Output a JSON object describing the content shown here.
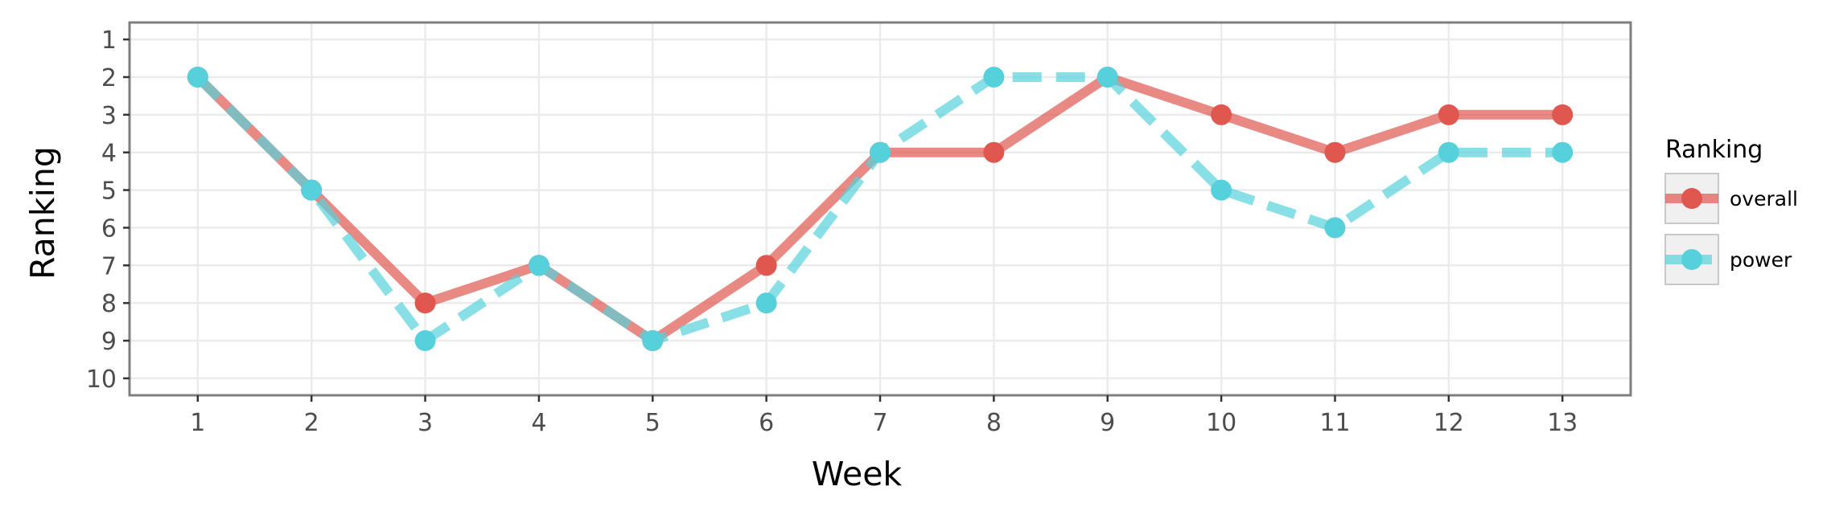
{
  "chart_data": {
    "type": "line",
    "title": "",
    "xlabel": "Week",
    "ylabel": "Ranking",
    "x": [
      1,
      2,
      3,
      4,
      5,
      6,
      7,
      8,
      9,
      10,
      11,
      12,
      13
    ],
    "x_ticks": [
      "1",
      "2",
      "3",
      "4",
      "5",
      "6",
      "7",
      "8",
      "9",
      "10",
      "11",
      "12",
      "13"
    ],
    "xlim": [
      0.4,
      13.6
    ],
    "y_ticks": [
      "1",
      "2",
      "3",
      "4",
      "5",
      "6",
      "7",
      "8",
      "9",
      "10"
    ],
    "ylim": [
      0.55,
      10.45
    ],
    "y_reversed": true,
    "grid": true,
    "legend": {
      "title": "Ranking",
      "position": "right"
    },
    "series": [
      {
        "name": "overall",
        "color": "#e0574f",
        "linestyle": "solid",
        "values": [
          2,
          5,
          8,
          7,
          9,
          7,
          4,
          4,
          2,
          3,
          4,
          3,
          3
        ]
      },
      {
        "name": "power",
        "color": "#56d1dc",
        "linestyle": "dashed",
        "values": [
          2,
          5,
          9,
          7,
          9,
          8,
          4,
          2,
          2,
          5,
          6,
          4,
          4
        ]
      }
    ]
  }
}
